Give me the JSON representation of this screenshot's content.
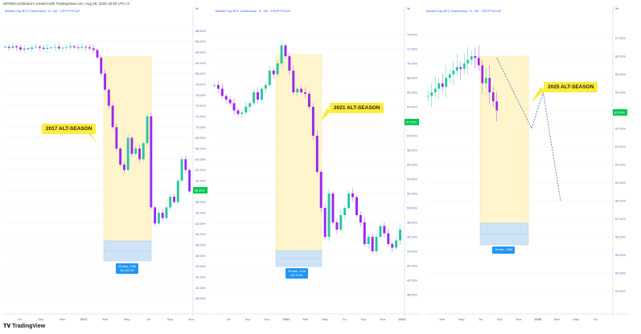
{
  "header": {
    "attribution": "WORDContributors created with TradingView.com, Aug 28, 2025 18:00 UTC+2",
    "brand": "TradingView"
  },
  "colors": {
    "up": "#26c6a0",
    "down": "#9c27f0",
    "highlight": "#fff5cc",
    "measure": "#cfe3f7",
    "callout": "#ffeb3b",
    "label": "#2196f3",
    "price_tag": "#00c853"
  },
  "chart_data": [
    {
      "type": "candlestick",
      "legend": "Market Cap BTC Dominance, %, 1W · CRYPTOCAP",
      "unit": "%",
      "ylim": [
        36,
        90
      ],
      "yticks": [
        38,
        40,
        42,
        44,
        46,
        48,
        50,
        52,
        54,
        56,
        58,
        60,
        62,
        64,
        66,
        68,
        70,
        72,
        74,
        76,
        78,
        80,
        82,
        84,
        86,
        88
      ],
      "xticks": [
        "Jul",
        "Sep",
        "Nov",
        "2017",
        "Mar",
        "May",
        "Jul",
        "Sep",
        "Nov"
      ],
      "closes": [
        85,
        84.8,
        85.1,
        84.9,
        84.5,
        84.7,
        84.6,
        84.9,
        85,
        84.8,
        84.6,
        84.8,
        84.9,
        85,
        84.7,
        84.8,
        84.9,
        85.1,
        84.9,
        84.8,
        85,
        84.9,
        84.7,
        84.4,
        83,
        80,
        77,
        74,
        70,
        66,
        63,
        62,
        68,
        65,
        66,
        64,
        67,
        72,
        55,
        52,
        54,
        53,
        55,
        57,
        56,
        60,
        64,
        62,
        58
      ],
      "callout": "2017 ALT-SEASON",
      "measure": "25 bars, 175d\nVol 104.1K",
      "price_tag": "58.xx%"
    },
    {
      "type": "candlestick",
      "legend": "Market Cap BTC Dominance, %, 1W · CRYPTOCAP",
      "unit": "%",
      "ylim": [
        36,
        76
      ],
      "yticks": [
        38,
        40,
        42,
        44,
        46,
        48,
        50,
        52,
        54,
        56,
        58,
        60,
        62,
        64,
        66,
        68,
        70,
        72,
        74
      ],
      "xticks": [
        "Jul",
        "Sep",
        "Nov",
        "2021",
        "Mar",
        "May",
        "Jul",
        "Sep",
        "Nov",
        "2022"
      ],
      "closes": [
        67,
        66.5,
        65.5,
        65,
        64.5,
        63.5,
        63,
        63.2,
        64,
        64.5,
        66,
        65,
        66.5,
        67,
        69,
        68.5,
        70,
        72.5,
        71,
        69,
        66,
        66.5,
        66,
        65.8,
        64,
        60,
        55,
        50,
        46,
        52,
        48,
        47,
        49,
        50,
        52,
        51.5,
        49,
        48,
        45,
        46,
        44,
        46,
        47.5,
        46.5,
        45,
        44.5,
        45.5,
        47
      ],
      "callout": "2021 ALT-SEASON",
      "measure": "16 bars, 112d\nVol 73.2K",
      "price_tag": "58.xx%"
    },
    {
      "type": "candlestick",
      "legend": "Market Cap BTC Dominance, %, 1W · CRYPTOCAP",
      "unit": "%",
      "ylim": [
        52,
        68
      ],
      "yticks": [
        53,
        54,
        55,
        56,
        57,
        58,
        59,
        60,
        61,
        62,
        63,
        64,
        65,
        66,
        67
      ],
      "xticks": [
        "Mar",
        "May",
        "Jul",
        "Sep",
        "Nov",
        "2026",
        "Mar",
        "May",
        "Jul"
      ],
      "closes": [
        63.8,
        64,
        64.2,
        64.5,
        64.3,
        64.8,
        65,
        65.2,
        65.4,
        65.3,
        65.6,
        65.8,
        66,
        65.9,
        65.5,
        64.5,
        64.8,
        64,
        63.5,
        63
      ],
      "projection": [
        [
          65.9,
          0
        ],
        [
          62.0,
          6
        ],
        [
          64.0,
          8
        ],
        [
          58.0,
          11
        ]
      ],
      "callout": "2025 ALT-SEASON",
      "measure": "18 bars, 126d",
      "price_tag": "63.xx%"
    }
  ]
}
